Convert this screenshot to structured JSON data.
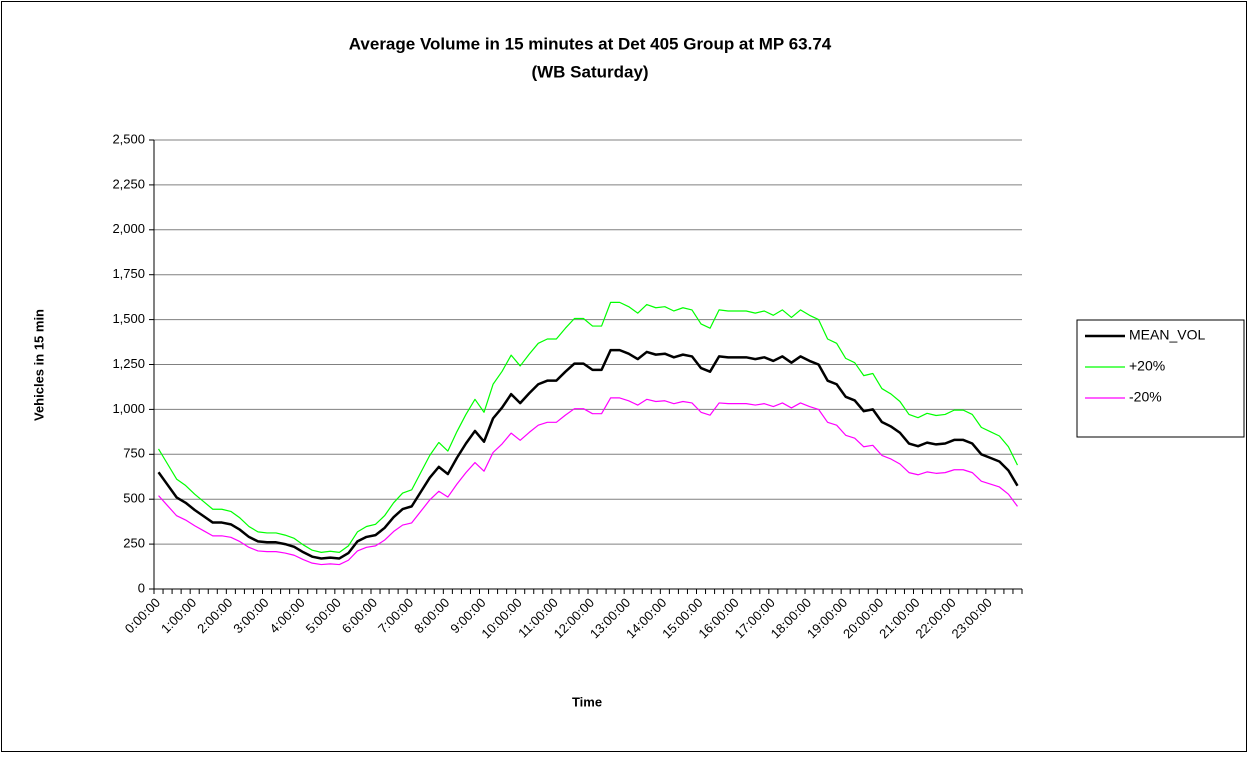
{
  "chart_data": {
    "type": "line",
    "title": [
      "Average Volume in 15 minutes at Det 405 Group at MP 63.74",
      "(WB Saturday)"
    ],
    "x_label": "Time",
    "y_label": "Vehicles in 15 min",
    "categories": [
      "0:00:00",
      null,
      null,
      null,
      "1:00:00",
      null,
      null,
      null,
      "2:00:00",
      null,
      null,
      null,
      "3:00:00",
      null,
      null,
      null,
      "4:00:00",
      null,
      null,
      null,
      "5:00:00",
      null,
      null,
      null,
      "6:00:00",
      null,
      null,
      null,
      "7:00:00",
      null,
      null,
      null,
      "8:00:00",
      null,
      null,
      null,
      "9:00:00",
      null,
      null,
      null,
      "10:00:00",
      null,
      null,
      null,
      "11:00:00",
      null,
      null,
      null,
      "12:00:00",
      null,
      null,
      null,
      "13:00:00",
      null,
      null,
      null,
      "14:00:00",
      null,
      null,
      null,
      "15:00:00",
      null,
      null,
      null,
      "16:00:00",
      null,
      null,
      null,
      "17:00:00",
      null,
      null,
      null,
      "18:00:00",
      null,
      null,
      null,
      "19:00:00",
      null,
      null,
      null,
      "20:00:00",
      null,
      null,
      null,
      "21:00:00",
      null,
      null,
      null,
      "22:00:00",
      null,
      null,
      null,
      "23:00:00",
      null,
      null,
      null
    ],
    "series": [
      {
        "name": "MEAN_VOL",
        "color": "#000000",
        "width": 2.5,
        "values": [
          650,
          580,
          510,
          480,
          440,
          405,
          370,
          370,
          360,
          330,
          290,
          265,
          260,
          260,
          250,
          235,
          205,
          180,
          170,
          175,
          170,
          200,
          265,
          290,
          300,
          340,
          400,
          445,
          460,
          540,
          620,
          680,
          640,
          730,
          810,
          880,
          820,
          950,
          1010,
          1085,
          1035,
          1090,
          1140,
          1160,
          1160,
          1210,
          1255,
          1255,
          1220,
          1220,
          1330,
          1330,
          1310,
          1280,
          1320,
          1305,
          1310,
          1290,
          1305,
          1295,
          1230,
          1210,
          1295,
          1290,
          1290,
          1290,
          1280,
          1290,
          1270,
          1295,
          1260,
          1295,
          1270,
          1250,
          1160,
          1140,
          1070,
          1050,
          990,
          1000,
          930,
          905,
          870,
          810,
          795,
          815,
          805,
          810,
          830,
          830,
          810,
          750,
          730,
          710,
          660,
          575
        ]
      },
      {
        "name": "+20%",
        "color": "#00ff00",
        "width": 1.2,
        "values": [
          780,
          696,
          612,
          576,
          528,
          486,
          444,
          444,
          432,
          396,
          348,
          318,
          312,
          312,
          300,
          282,
          246,
          216,
          204,
          210,
          204,
          240,
          318,
          348,
          360,
          408,
          480,
          534,
          552,
          648,
          744,
          816,
          768,
          876,
          972,
          1056,
          984,
          1140,
          1212,
          1302,
          1242,
          1308,
          1368,
          1392,
          1392,
          1452,
          1506,
          1506,
          1464,
          1464,
          1596,
          1596,
          1572,
          1536,
          1584,
          1566,
          1572,
          1548,
          1566,
          1554,
          1476,
          1452,
          1554,
          1548,
          1548,
          1548,
          1536,
          1548,
          1524,
          1554,
          1512,
          1554,
          1524,
          1500,
          1392,
          1368,
          1284,
          1260,
          1188,
          1200,
          1116,
          1086,
          1044,
          972,
          954,
          978,
          966,
          972,
          996,
          996,
          972,
          900,
          876,
          852,
          792,
          690
        ]
      },
      {
        "name": "-20%",
        "color": "#ff00ff",
        "width": 1.2,
        "values": [
          520,
          464,
          408,
          384,
          352,
          324,
          296,
          296,
          288,
          264,
          232,
          212,
          208,
          208,
          200,
          188,
          164,
          144,
          136,
          140,
          136,
          160,
          212,
          232,
          240,
          272,
          320,
          356,
          368,
          432,
          496,
          544,
          512,
          584,
          648,
          704,
          656,
          760,
          808,
          868,
          828,
          872,
          912,
          928,
          928,
          968,
          1004,
          1004,
          976,
          976,
          1064,
          1064,
          1048,
          1024,
          1056,
          1044,
          1048,
          1032,
          1044,
          1036,
          984,
          968,
          1036,
          1032,
          1032,
          1032,
          1024,
          1032,
          1016,
          1036,
          1008,
          1036,
          1016,
          1000,
          928,
          912,
          856,
          840,
          792,
          800,
          744,
          724,
          696,
          648,
          636,
          652,
          644,
          648,
          664,
          664,
          648,
          600,
          584,
          568,
          528,
          460
        ]
      }
    ],
    "ylim": [
      0,
      2500
    ],
    "yticks": [
      0,
      250,
      500,
      750,
      {
        "value": 1000,
        "label": "1,000"
      },
      {
        "value": 1250,
        "label": "1,250"
      },
      {
        "value": 1500,
        "label": "1,500"
      },
      {
        "value": 1750,
        "label": "1,750"
      },
      {
        "value": 2000,
        "label": "2,000"
      },
      {
        "value": 2250,
        "label": "2,250"
      },
      {
        "value": 2500,
        "label": "2,500"
      }
    ],
    "grid": true,
    "legend": "right"
  }
}
